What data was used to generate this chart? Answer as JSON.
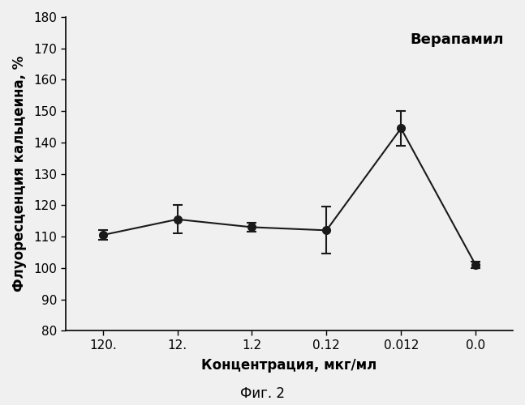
{
  "x_labels": [
    "120.",
    "12.",
    "1.2",
    "0.12",
    "0.012",
    "0.0"
  ],
  "x_positions": [
    0,
    1,
    2,
    3,
    4,
    5
  ],
  "y_values": [
    110.5,
    115.5,
    113.0,
    112.0,
    144.5,
    101.0
  ],
  "y_errors": [
    1.5,
    4.5,
    1.5,
    7.5,
    5.5,
    1.0
  ],
  "ylabel": "Флуоресценция кальцеина, %",
  "xlabel": "Концентрация, мкг/мл",
  "annotation": "Верапамил",
  "caption": "Фиг. 2",
  "ylim": [
    80,
    180
  ],
  "yticks": [
    80,
    90,
    100,
    110,
    120,
    130,
    140,
    150,
    160,
    170,
    180
  ],
  "line_color": "#1a1a1a",
  "marker_color": "#1a1a1a",
  "background_color": "#f0f0f0",
  "plot_bg_color": "#f0f0f0",
  "label_fontsize": 12,
  "tick_fontsize": 11,
  "caption_fontsize": 12,
  "annotation_fontsize": 13,
  "figsize": [
    6.47,
    5.0
  ],
  "dpi": 100
}
